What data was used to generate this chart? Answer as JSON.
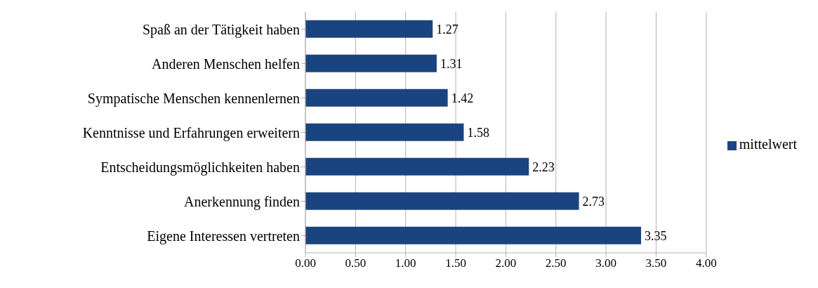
{
  "chart_data": {
    "type": "bar",
    "orientation": "horizontal",
    "categories": [
      "Spaß an der Tätigkeit haben",
      "Anderen Menschen helfen",
      "Sympatische Menschen kennenlernen",
      "Kenntnisse und Erfahrungen erweitern",
      "Entscheidungsmöglichkeiten haben",
      "Anerkennung finden",
      "Eigene Interessen vertreten"
    ],
    "series": [
      {
        "name": "mittelwert",
        "color": "#1a4480",
        "values": [
          1.27,
          1.31,
          1.42,
          1.58,
          2.23,
          2.73,
          3.35
        ]
      }
    ],
    "xlim": [
      0,
      4
    ],
    "xticks": [
      {
        "value": 0,
        "label": "0.00"
      },
      {
        "value": 0.5,
        "label": "0.50"
      },
      {
        "value": 1,
        "label": "1.00"
      },
      {
        "value": 1.5,
        "label": "1.50"
      },
      {
        "value": 2,
        "label": "2.00"
      },
      {
        "value": 2.5,
        "label": "2.50"
      },
      {
        "value": 3,
        "label": "3.00"
      },
      {
        "value": 3.5,
        "label": "3.50"
      },
      {
        "value": 4,
        "label": "4.00"
      }
    ],
    "grid": "x",
    "legend": "right",
    "data_labels": true
  }
}
